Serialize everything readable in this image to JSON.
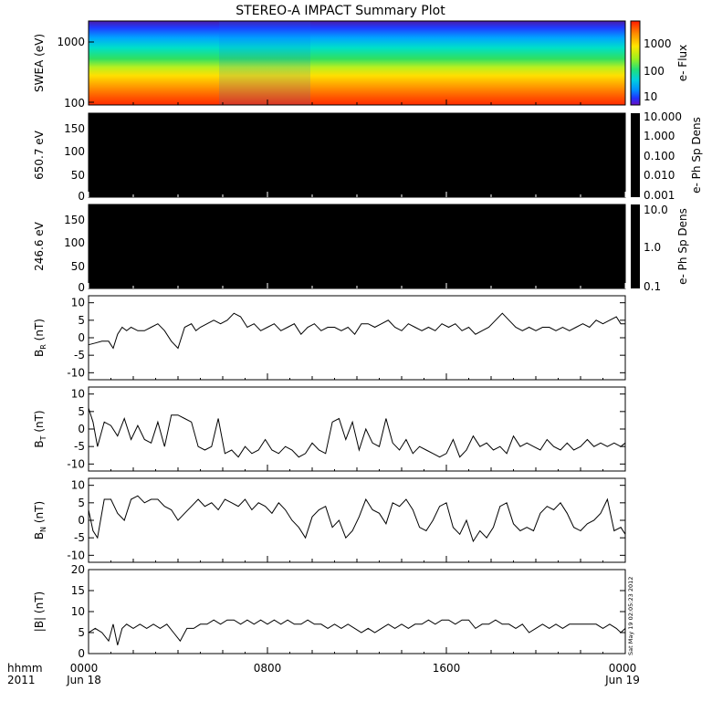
{
  "chart_data": {
    "type": "line",
    "title": "STEREO-A IMPACT Summary Plot",
    "time_axis": {
      "label_top": "hhmm",
      "label_bottom": "2011",
      "ticks": [
        {
          "value": "0000",
          "date": "Jun 18"
        },
        {
          "value": "0800",
          "date": ""
        },
        {
          "value": "1600",
          "date": ""
        },
        {
          "value": "0000",
          "date": "Jun 19"
        }
      ],
      "range_hours": [
        0,
        24
      ]
    },
    "timestamp": "Sat May 19 02:05:23 2012",
    "panels": [
      {
        "id": "swea",
        "type": "heatmap",
        "ylabel": "SWEA (eV)",
        "yscale": "log",
        "yticks": [
          "1000",
          "100"
        ],
        "colorbar": {
          "label": "e- Flux",
          "ticks": [
            "1000",
            "100",
            "10"
          ],
          "scale": "log",
          "range": [
            5,
            10000
          ]
        }
      },
      {
        "id": "pad650",
        "type": "heatmap",
        "ylabel": "650.7 eV",
        "yticks": [
          "150",
          "100",
          "50",
          "0"
        ],
        "ylim": [
          0,
          180
        ],
        "fill": "#000000",
        "colorbar": {
          "label": "e- Ph Sp Dens",
          "ticks": [
            "10.000",
            "1.000",
            "0.100",
            "0.010",
            "0.001"
          ]
        }
      },
      {
        "id": "pad246",
        "type": "heatmap",
        "ylabel": "246.6 eV",
        "yticks": [
          "150",
          "100",
          "50",
          "0"
        ],
        "ylim": [
          0,
          180
        ],
        "fill": "#000000",
        "colorbar": {
          "label": "e- Ph Sp Dens",
          "ticks": [
            "10.0",
            "1.0",
            "0.1"
          ]
        }
      },
      {
        "id": "br",
        "type": "line",
        "ylabel_main": "B",
        "ylabel_sub": "R",
        "ylabel_unit": " (nT)",
        "ylim": [
          -12,
          12
        ],
        "yticks": [
          "10",
          "5",
          "0",
          "-5",
          "-10"
        ],
        "x": [
          0,
          0.3,
          0.6,
          0.9,
          1.1,
          1.3,
          1.5,
          1.7,
          1.9,
          2.2,
          2.5,
          2.8,
          3.1,
          3.4,
          3.7,
          4.0,
          4.3,
          4.6,
          4.8,
          5.0,
          5.3,
          5.6,
          5.9,
          6.2,
          6.5,
          6.8,
          7.1,
          7.4,
          7.7,
          8.0,
          8.3,
          8.6,
          8.9,
          9.2,
          9.5,
          9.8,
          10.1,
          10.4,
          10.7,
          11.0,
          11.3,
          11.6,
          11.9,
          12.2,
          12.5,
          12.8,
          13.1,
          13.4,
          13.7,
          14.0,
          14.3,
          14.6,
          14.9,
          15.2,
          15.5,
          15.8,
          16.1,
          16.4,
          16.7,
          17.0,
          17.3,
          17.6,
          17.9,
          18.2,
          18.5,
          18.8,
          19.1,
          19.4,
          19.7,
          20.0,
          20.3,
          20.6,
          20.9,
          21.2,
          21.5,
          21.8,
          22.1,
          22.4,
          22.7,
          23.0,
          23.3,
          23.6,
          23.8,
          24.0
        ],
        "y": [
          -2,
          -1.5,
          -1,
          -1,
          -3,
          1,
          3,
          2,
          3,
          2,
          2,
          3,
          4,
          2,
          -1,
          -3,
          3,
          4,
          2,
          3,
          4,
          5,
          4,
          5,
          7,
          6,
          3,
          4,
          2,
          3,
          4,
          2,
          3,
          4,
          1,
          3,
          4,
          2,
          3,
          3,
          2,
          3,
          1,
          4,
          4,
          3,
          4,
          5,
          3,
          2,
          4,
          3,
          2,
          3,
          2,
          4,
          3,
          4,
          2,
          3,
          1,
          2,
          3,
          5,
          7,
          5,
          3,
          2,
          3,
          2,
          3,
          3,
          2,
          3,
          2,
          3,
          4,
          3,
          5,
          4,
          5,
          6,
          4,
          4
        ]
      },
      {
        "id": "bt",
        "type": "line",
        "ylabel_main": "B",
        "ylabel_sub": "T",
        "ylabel_unit": " (nT)",
        "ylim": [
          -12,
          12
        ],
        "yticks": [
          "10",
          "5",
          "0",
          "-5",
          "-10"
        ],
        "x": [
          0,
          0.2,
          0.4,
          0.7,
          1.0,
          1.3,
          1.6,
          1.9,
          2.2,
          2.5,
          2.8,
          3.1,
          3.4,
          3.7,
          4.0,
          4.3,
          4.6,
          4.9,
          5.2,
          5.5,
          5.8,
          6.1,
          6.4,
          6.7,
          7.0,
          7.3,
          7.6,
          7.9,
          8.2,
          8.5,
          8.8,
          9.1,
          9.4,
          9.7,
          10.0,
          10.3,
          10.6,
          10.9,
          11.2,
          11.5,
          11.8,
          12.1,
          12.4,
          12.7,
          13.0,
          13.3,
          13.6,
          13.9,
          14.2,
          14.5,
          14.8,
          15.1,
          15.4,
          15.7,
          16.0,
          16.3,
          16.6,
          16.9,
          17.2,
          17.5,
          17.8,
          18.1,
          18.4,
          18.7,
          19.0,
          19.3,
          19.6,
          19.9,
          20.2,
          20.5,
          20.8,
          21.1,
          21.4,
          21.7,
          22.0,
          22.3,
          22.6,
          22.9,
          23.2,
          23.5,
          23.8,
          24.0
        ],
        "y": [
          6,
          2,
          -5,
          2,
          1,
          -2,
          3,
          -3,
          1,
          -3,
          -4,
          2,
          -5,
          4,
          4,
          3,
          2,
          -5,
          -6,
          -5,
          3,
          -7,
          -6,
          -8,
          -5,
          -7,
          -6,
          -3,
          -6,
          -7,
          -5,
          -6,
          -8,
          -7,
          -4,
          -6,
          -7,
          2,
          3,
          -3,
          2,
          -6,
          0,
          -4,
          -5,
          3,
          -4,
          -6,
          -3,
          -7,
          -5,
          -6,
          -7,
          -8,
          -7,
          -3,
          -8,
          -6,
          -2,
          -5,
          -4,
          -6,
          -5,
          -7,
          -2,
          -5,
          -4,
          -5,
          -6,
          -3,
          -5,
          -6,
          -4,
          -6,
          -5,
          -3,
          -5,
          -4,
          -5,
          -4,
          -5,
          -4
        ]
      },
      {
        "id": "bn",
        "type": "line",
        "ylabel_main": "B",
        "ylabel_sub": "N",
        "ylabel_unit": " (nT)",
        "ylim": [
          -12,
          12
        ],
        "yticks": [
          "10",
          "5",
          "0",
          "-5",
          "-10"
        ],
        "x": [
          0,
          0.2,
          0.4,
          0.7,
          1.0,
          1.3,
          1.6,
          1.9,
          2.2,
          2.5,
          2.8,
          3.1,
          3.4,
          3.7,
          4.0,
          4.3,
          4.6,
          4.9,
          5.2,
          5.5,
          5.8,
          6.1,
          6.4,
          6.7,
          7.0,
          7.3,
          7.6,
          7.9,
          8.2,
          8.5,
          8.8,
          9.1,
          9.4,
          9.7,
          10.0,
          10.3,
          10.6,
          10.9,
          11.2,
          11.5,
          11.8,
          12.1,
          12.4,
          12.7,
          13.0,
          13.3,
          13.6,
          13.9,
          14.2,
          14.5,
          14.8,
          15.1,
          15.4,
          15.7,
          16.0,
          16.3,
          16.6,
          16.9,
          17.2,
          17.5,
          17.8,
          18.1,
          18.4,
          18.7,
          19.0,
          19.3,
          19.6,
          19.9,
          20.2,
          20.5,
          20.8,
          21.1,
          21.4,
          21.7,
          22.0,
          22.3,
          22.6,
          22.9,
          23.2,
          23.5,
          23.8,
          24.0
        ],
        "y": [
          3,
          -3,
          -5,
          6,
          6,
          2,
          0,
          6,
          7,
          5,
          6,
          6,
          4,
          3,
          0,
          2,
          4,
          6,
          4,
          5,
          3,
          6,
          5,
          4,
          6,
          3,
          5,
          4,
          2,
          5,
          3,
          0,
          -2,
          -5,
          1,
          3,
          4,
          -2,
          0,
          -5,
          -3,
          1,
          6,
          3,
          2,
          -1,
          5,
          4,
          6,
          3,
          -2,
          -3,
          0,
          4,
          5,
          -2,
          -4,
          0,
          -6,
          -3,
          -5,
          -2,
          4,
          5,
          -1,
          -3,
          -2,
          -3,
          2,
          4,
          3,
          5,
          2,
          -2,
          -3,
          -1,
          0,
          2,
          6,
          -3,
          -2,
          -4
        ]
      },
      {
        "id": "bmag",
        "type": "line",
        "ylabel_main": "|B|",
        "ylabel_sub": "",
        "ylabel_unit": " (nT)",
        "ylim": [
          0,
          20
        ],
        "yticks": [
          "20",
          "15",
          "10",
          "5",
          "0"
        ],
        "x": [
          0,
          0.3,
          0.6,
          0.9,
          1.1,
          1.3,
          1.5,
          1.7,
          2.0,
          2.3,
          2.6,
          2.9,
          3.2,
          3.5,
          3.8,
          4.1,
          4.4,
          4.7,
          5.0,
          5.3,
          5.6,
          5.9,
          6.2,
          6.5,
          6.8,
          7.1,
          7.4,
          7.7,
          8.0,
          8.3,
          8.6,
          8.9,
          9.2,
          9.5,
          9.8,
          10.1,
          10.4,
          10.7,
          11.0,
          11.3,
          11.6,
          11.9,
          12.2,
          12.5,
          12.8,
          13.1,
          13.4,
          13.7,
          14.0,
          14.3,
          14.6,
          14.9,
          15.2,
          15.5,
          15.8,
          16.1,
          16.4,
          16.7,
          17.0,
          17.3,
          17.6,
          17.9,
          18.2,
          18.5,
          18.8,
          19.1,
          19.4,
          19.7,
          20.0,
          20.3,
          20.6,
          20.9,
          21.2,
          21.5,
          21.8,
          22.1,
          22.4,
          22.7,
          23.0,
          23.3,
          23.6,
          23.8,
          24.0
        ],
        "y": [
          5,
          6,
          5,
          3,
          7,
          2,
          6,
          7,
          6,
          7,
          6,
          7,
          6,
          7,
          5,
          3,
          6,
          6,
          7,
          7,
          8,
          7,
          8,
          8,
          7,
          8,
          7,
          8,
          7,
          8,
          7,
          8,
          7,
          7,
          8,
          7,
          7,
          6,
          7,
          6,
          7,
          6,
          5,
          6,
          5,
          6,
          7,
          6,
          7,
          6,
          7,
          7,
          8,
          7,
          8,
          8,
          7,
          8,
          8,
          6,
          7,
          7,
          8,
          7,
          7,
          6,
          7,
          5,
          6,
          7,
          6,
          7,
          6,
          7,
          7,
          7,
          7,
          7,
          6,
          7,
          6,
          5,
          6
        ]
      }
    ]
  }
}
